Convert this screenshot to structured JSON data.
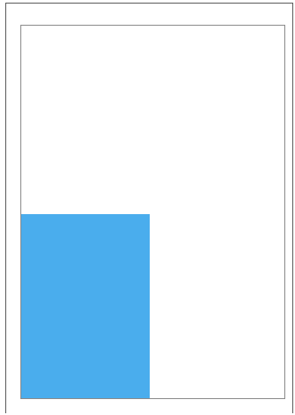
{
  "canvas": {
    "background_color": "#ffffff",
    "border_color": "#8a8a8a"
  },
  "shapes": [
    {
      "kind": "rectangle",
      "fill_color": "#4aaded"
    }
  ]
}
